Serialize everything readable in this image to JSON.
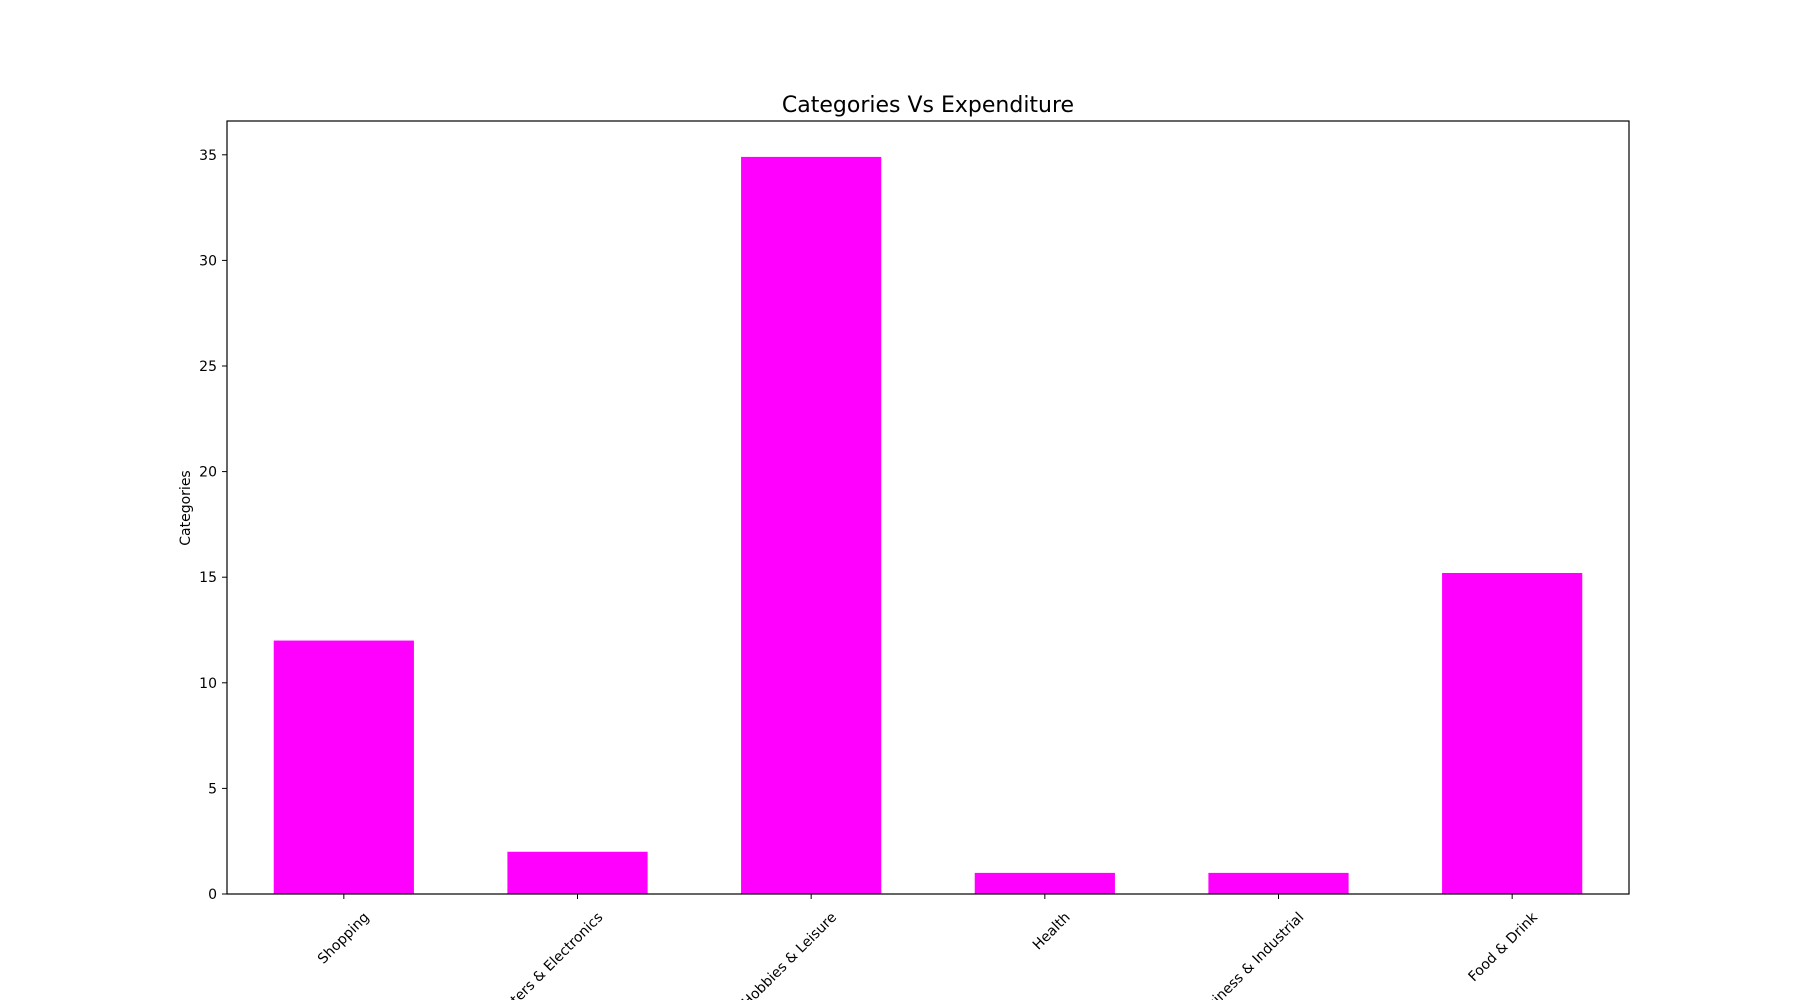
{
  "chart_data": {
    "type": "bar",
    "title": "Categories Vs Expenditure",
    "xlabel": "",
    "ylabel": "Categories",
    "categories": [
      "Shopping",
      "Computers & Electronics",
      "Hobbies & Leisure",
      "Health",
      "Business & Industrial",
      "Food & Drink"
    ],
    "values": [
      12,
      2,
      34.9,
      1,
      1,
      15.2
    ],
    "ylim": [
      0,
      36.6
    ],
    "yticks": [
      0,
      5,
      10,
      15,
      20,
      25,
      30,
      35
    ],
    "bar_color": "#ff00ff",
    "grid": false,
    "legend": "none"
  }
}
